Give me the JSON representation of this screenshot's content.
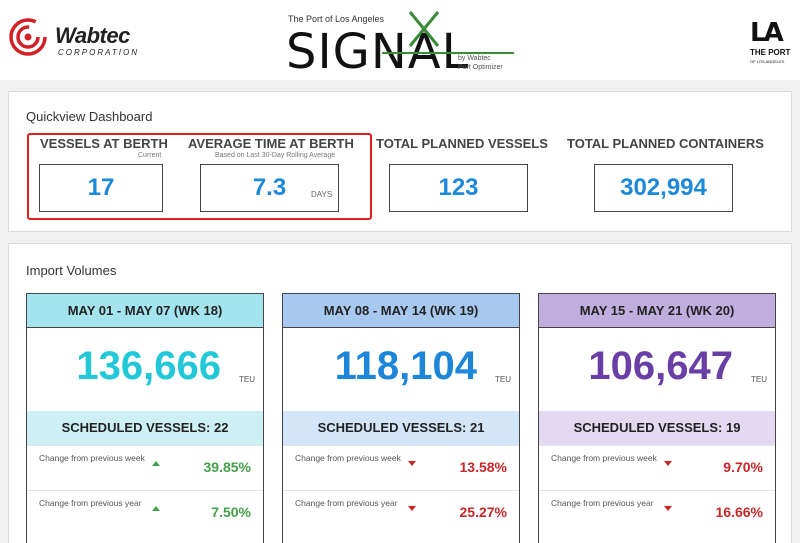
{
  "header": {
    "wabtec_name": "Wabtec",
    "wabtec_sub": "CORPORATION",
    "signal_top": "The Port of Los Angeles",
    "signal_word": "SIGNAL",
    "signal_by": "by Wabtec",
    "signal_product": "Port Optimizer",
    "la_mark": "LA",
    "la_port": "THE PORT",
    "la_city": "OF LOS ANGELES"
  },
  "quickview": {
    "title": "Quickview Dashboard",
    "vessels_at_berth": {
      "label": "VESSELS AT BERTH",
      "sub": "Current",
      "value": "17"
    },
    "avg_time_at_berth": {
      "label": "AVERAGE TIME AT BERTH",
      "sub": "Based on Last 30-Day Rolling Average",
      "value": "7.3",
      "unit": "DAYS"
    },
    "total_planned_vessels": {
      "label": "TOTAL PLANNED VESSELS",
      "value": "123"
    },
    "total_planned_containers": {
      "label": "TOTAL PLANNED CONTAINERS",
      "value": "302,994"
    },
    "highlight_color": "#e02020"
  },
  "import_volumes": {
    "title": "Import Volumes",
    "weeks": [
      {
        "header": "MAY 01 - MAY 07 (WK 18)",
        "teu": "136,666",
        "unit": "TEU",
        "scheduled": "SCHEDULED VESSELS: 22",
        "header_color": "#a4e4ef",
        "value_color": "#23c8d8",
        "band_color": "#cdf0f5",
        "changes": [
          {
            "label": "Change from previous week",
            "direction": "up",
            "value": "39.85%"
          },
          {
            "label": "Change from previous year",
            "direction": "up",
            "value": "7.50%"
          }
        ]
      },
      {
        "header": "MAY 08 - MAY 14 (WK 19)",
        "teu": "118,104",
        "unit": "TEU",
        "scheduled": "SCHEDULED VESSELS: 21",
        "header_color": "#a7c9f0",
        "value_color": "#1e86d8",
        "band_color": "#d3e5f8",
        "changes": [
          {
            "label": "Change from previous week",
            "direction": "down",
            "value": "13.58%"
          },
          {
            "label": "Change from previous year",
            "direction": "down",
            "value": "25.27%"
          }
        ]
      },
      {
        "header": "MAY 15 - MAY 21 (WK 20)",
        "teu": "106,647",
        "unit": "TEU",
        "scheduled": "SCHEDULED VESSELS: 19",
        "header_color": "#c0aede",
        "value_color": "#6a3fa5",
        "band_color": "#e3d9f0",
        "changes": [
          {
            "label": "Change from previous week",
            "direction": "down",
            "value": "9.70%"
          },
          {
            "label": "Change from previous year",
            "direction": "down",
            "value": "16.66%"
          }
        ]
      }
    ]
  }
}
